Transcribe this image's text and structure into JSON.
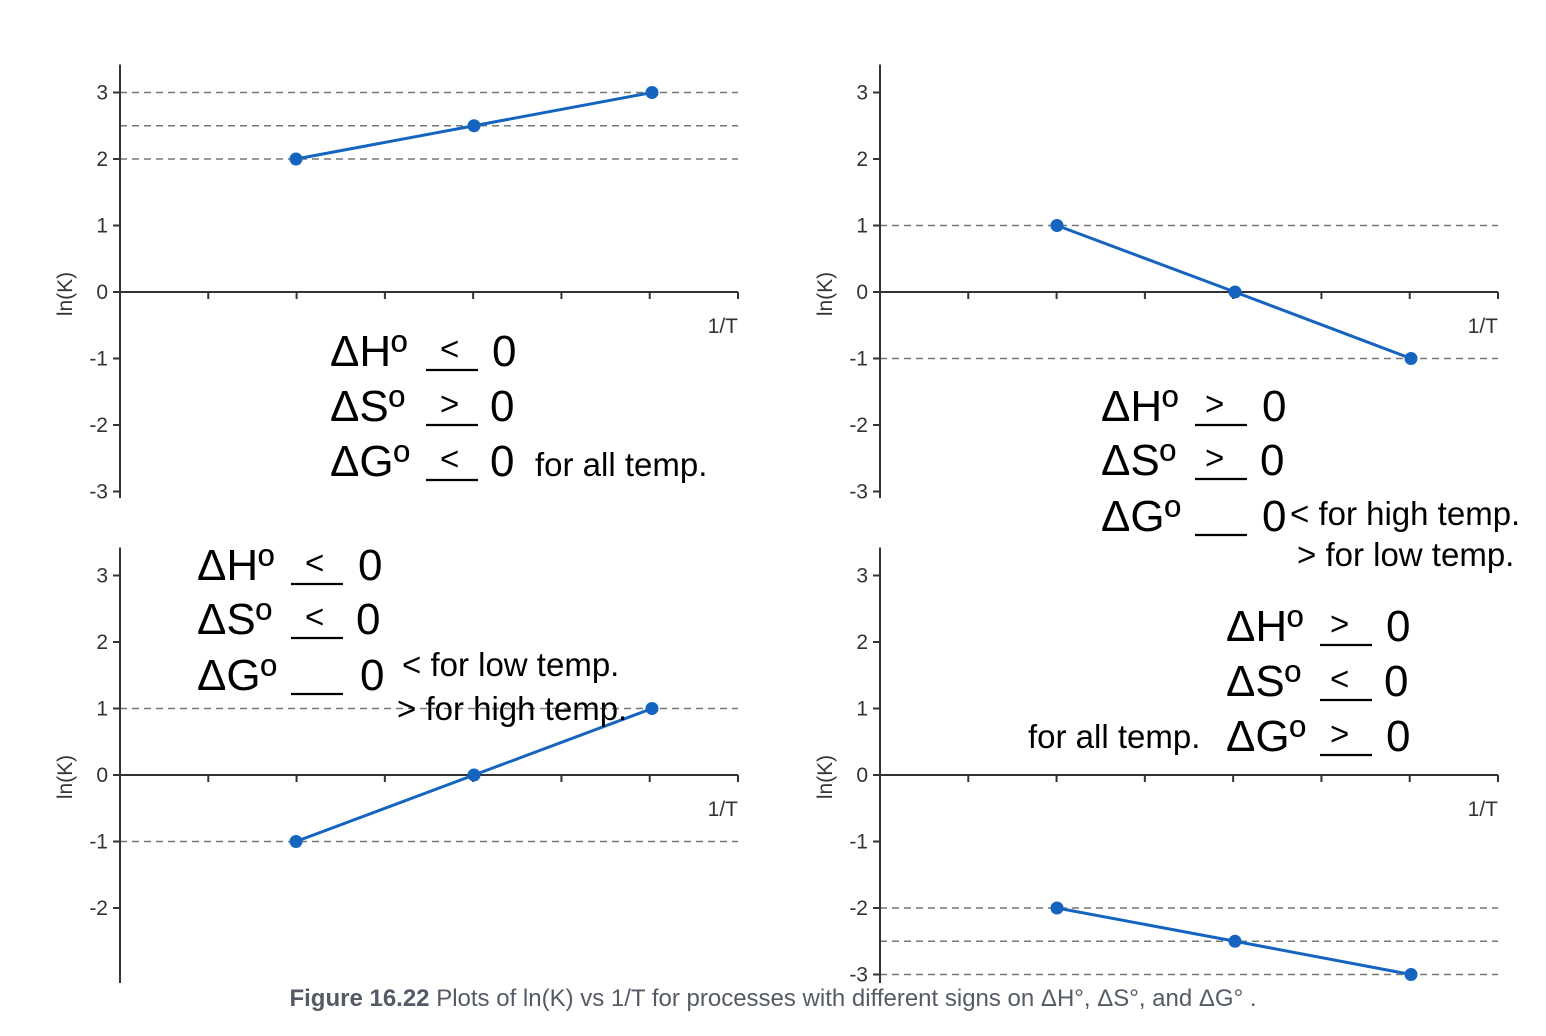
{
  "chart_data": [
    {
      "type": "line",
      "x": [
        1,
        2,
        3
      ],
      "values": [
        2,
        2.5,
        3
      ],
      "ylim": [
        -3,
        3
      ],
      "yticks": [
        "3",
        "2",
        "1",
        "0",
        "-1",
        "-2",
        "-3"
      ],
      "xlabel": "1/T",
      "ylabel": "ln(K)",
      "reference_lines": [
        3,
        2.5,
        2
      ],
      "annotations": [
        "ΔHº __ 0",
        "ΔSº __ 0",
        "ΔGº __ 0"
      ],
      "annotation_marks": [
        "<",
        ">",
        "<"
      ],
      "notes": [
        "for all temp."
      ]
    },
    {
      "type": "line",
      "x": [
        1,
        2,
        3
      ],
      "values": [
        1,
        0,
        -1
      ],
      "ylim": [
        -3,
        3
      ],
      "yticks": [
        "3",
        "2",
        "1",
        "0",
        "-1",
        "-2",
        "-3"
      ],
      "xlabel": "1/T",
      "ylabel": "ln(K)",
      "reference_lines": [
        1,
        -1
      ],
      "annotations": [
        "ΔHº __ 0",
        "ΔSº __ 0",
        "ΔGº __ 0"
      ],
      "annotation_marks": [
        ">",
        ">",
        ""
      ],
      "notes": [
        "< for high temp.",
        "> for low temp."
      ]
    },
    {
      "type": "line",
      "x": [
        1,
        2,
        3
      ],
      "values": [
        -1,
        0,
        1
      ],
      "ylim": [
        -3,
        3
      ],
      "yticks": [
        "3",
        "2",
        "1",
        "0",
        "-1",
        "-2"
      ],
      "xlabel": "1/T",
      "ylabel": "ln(K)",
      "reference_lines": [
        1,
        -1
      ],
      "annotations": [
        "ΔHº __ 0",
        "ΔSº __ 0",
        "ΔGº __ 0"
      ],
      "annotation_marks": [
        "<",
        "<",
        ""
      ],
      "notes": [
        "< for low temp.",
        "> for high temp."
      ]
    },
    {
      "type": "line",
      "x": [
        1,
        2,
        3
      ],
      "values": [
        -2,
        -2.5,
        -3
      ],
      "ylim": [
        -3,
        3
      ],
      "yticks": [
        "3",
        "2",
        "1",
        "0",
        "-1",
        "-2",
        "-3"
      ],
      "xlabel": "1/T",
      "ylabel": "ln(K)",
      "reference_lines": [
        -2,
        -2.5,
        -3
      ],
      "annotations": [
        "ΔHº __ 0",
        "ΔSº __ 0",
        "ΔGº __ 0"
      ],
      "annotation_marks": [
        ">",
        "<",
        ">"
      ],
      "notes": [
        "for all temp."
      ]
    }
  ],
  "colors": {
    "series": "#1565c0",
    "axis": "#333333",
    "ref_line": "#777777",
    "caption": "#555b66"
  },
  "caption": {
    "label": "Figure 16.22",
    "text": "Plots of ln(K) vs 1/T for processes with different signs on ΔH°, ΔS°, and ΔG° ."
  }
}
